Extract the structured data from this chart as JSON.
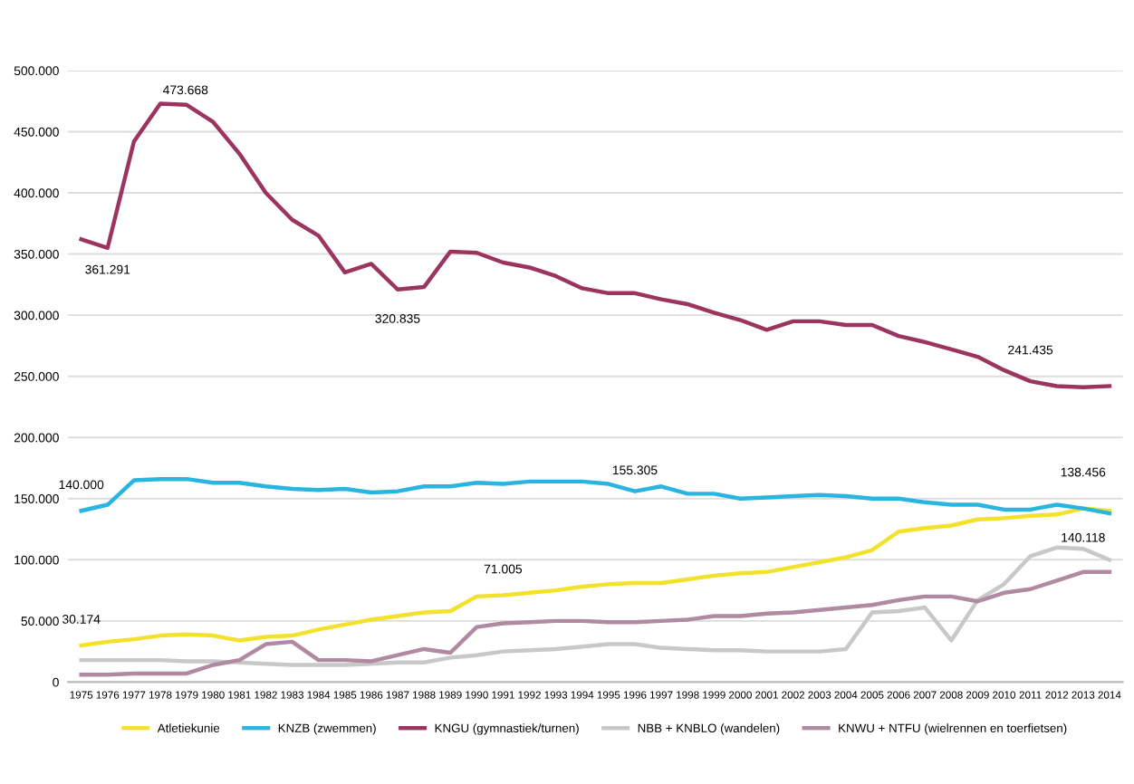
{
  "chart_data": {
    "type": "line",
    "categories": [
      "1975",
      "1976",
      "1977",
      "1978",
      "1979",
      "1980",
      "1981",
      "1982",
      "1983",
      "1984",
      "1985",
      "1986",
      "1987",
      "1988",
      "1989",
      "1990",
      "1991",
      "1992",
      "1993",
      "1994",
      "1995",
      "1996",
      "1997",
      "1998",
      "1999",
      "2000",
      "2001",
      "2002",
      "2003",
      "2004",
      "2005",
      "2006",
      "2007",
      "2008",
      "2009",
      "2010",
      "2011",
      "2012",
      "2013",
      "2014"
    ],
    "series": [
      {
        "name": "Atletiekunie",
        "color": "#f2e22b",
        "values": [
          30000,
          33000,
          35000,
          38000,
          39000,
          38000,
          34000,
          37000,
          38000,
          43000,
          47000,
          51000,
          54000,
          57000,
          58000,
          70000,
          71000,
          73000,
          75000,
          78000,
          80000,
          81000,
          81000,
          84000,
          87000,
          89000,
          90000,
          94000,
          98000,
          102000,
          108000,
          123000,
          126000,
          128000,
          133000,
          134000,
          136000,
          137000,
          142000,
          140000
        ]
      },
      {
        "name": "KNZB (zwemmen)",
        "color": "#2ab4e0",
        "values": [
          140000,
          145000,
          165000,
          166000,
          166000,
          163000,
          163000,
          160000,
          158000,
          157000,
          158000,
          155000,
          156000,
          160000,
          160000,
          163000,
          162000,
          164000,
          164000,
          164000,
          162000,
          156000,
          160000,
          154000,
          154000,
          150000,
          151000,
          152000,
          153000,
          152000,
          150000,
          150000,
          147000,
          145000,
          145000,
          141000,
          141000,
          145000,
          142000,
          138000
        ]
      },
      {
        "name": "KNGU (gymnastiek/turnen)",
        "color": "#9b3560",
        "values": [
          362000,
          355000,
          442000,
          473000,
          472000,
          458000,
          432000,
          400000,
          378000,
          365000,
          335000,
          342000,
          321000,
          323000,
          352000,
          351000,
          343000,
          339000,
          332000,
          322000,
          318000,
          318000,
          313000,
          309000,
          302000,
          296000,
          288000,
          295000,
          295000,
          292000,
          292000,
          283000,
          278000,
          272000,
          266000,
          255000,
          246000,
          242000,
          241000,
          242000
        ]
      },
      {
        "name": "NBB + KNBLO (wandelen)",
        "color": "#c8c8c8",
        "values": [
          18000,
          18000,
          18000,
          18000,
          17000,
          17000,
          16000,
          15000,
          14000,
          14000,
          14000,
          15000,
          16000,
          16000,
          20000,
          22000,
          25000,
          26000,
          27000,
          29000,
          31000,
          31000,
          28000,
          27000,
          26000,
          26000,
          25000,
          25000,
          25000,
          27000,
          57000,
          58000,
          61000,
          34000,
          67000,
          80000,
          103000,
          110000,
          109000,
          100000
        ]
      },
      {
        "name": "KNWU + NTFU (wielrennen en toerfietsen)",
        "color": "#b08aa0",
        "values": [
          6000,
          6000,
          7000,
          7000,
          7000,
          14000,
          18000,
          31000,
          33000,
          18000,
          18000,
          17000,
          22000,
          27000,
          24000,
          45000,
          48000,
          49000,
          50000,
          50000,
          49000,
          49000,
          50000,
          51000,
          54000,
          54000,
          56000,
          57000,
          59000,
          61000,
          63000,
          67000,
          70000,
          70000,
          66000,
          73000,
          76000,
          83000,
          90000,
          90000
        ]
      }
    ],
    "ylim": [
      0,
      500000
    ],
    "yticks": [
      {
        "value": 0,
        "label": "0"
      },
      {
        "value": 50000,
        "label": "50.000"
      },
      {
        "value": 100000,
        "label": "100.000"
      },
      {
        "value": 150000,
        "label": "150.000"
      },
      {
        "value": 200000,
        "label": "200.000"
      },
      {
        "value": 250000,
        "label": "250.000"
      },
      {
        "value": 300000,
        "label": "300.000"
      },
      {
        "value": 350000,
        "label": "350.000"
      },
      {
        "value": 400000,
        "label": "400.000"
      },
      {
        "value": 450000,
        "label": "450.000"
      },
      {
        "value": 500000,
        "label": "500.000"
      }
    ],
    "grid": "y",
    "legend": "bottom",
    "marker": "none",
    "line_style": "solid",
    "annotations": [
      {
        "text": "361.291",
        "x": "1976",
        "y": 355000
      },
      {
        "text": "473.668",
        "x": "1978",
        "y": 473000
      },
      {
        "text": "320.835",
        "x": "1987",
        "y": 321000
      },
      {
        "text": "241.435",
        "x": "2011",
        "y": 246000
      },
      {
        "text": "140.000",
        "x": "1975",
        "y": 140000
      },
      {
        "text": "155.305",
        "x": "1996",
        "y": 156000
      },
      {
        "text": "138.456",
        "x": "2013",
        "y": 142000
      },
      {
        "text": "140.118",
        "x": "2013",
        "y": 142000
      },
      {
        "text": "71.005",
        "x": "1991",
        "y": 71000
      },
      {
        "text": "30.174",
        "x": "1975",
        "y": 30000
      }
    ]
  }
}
